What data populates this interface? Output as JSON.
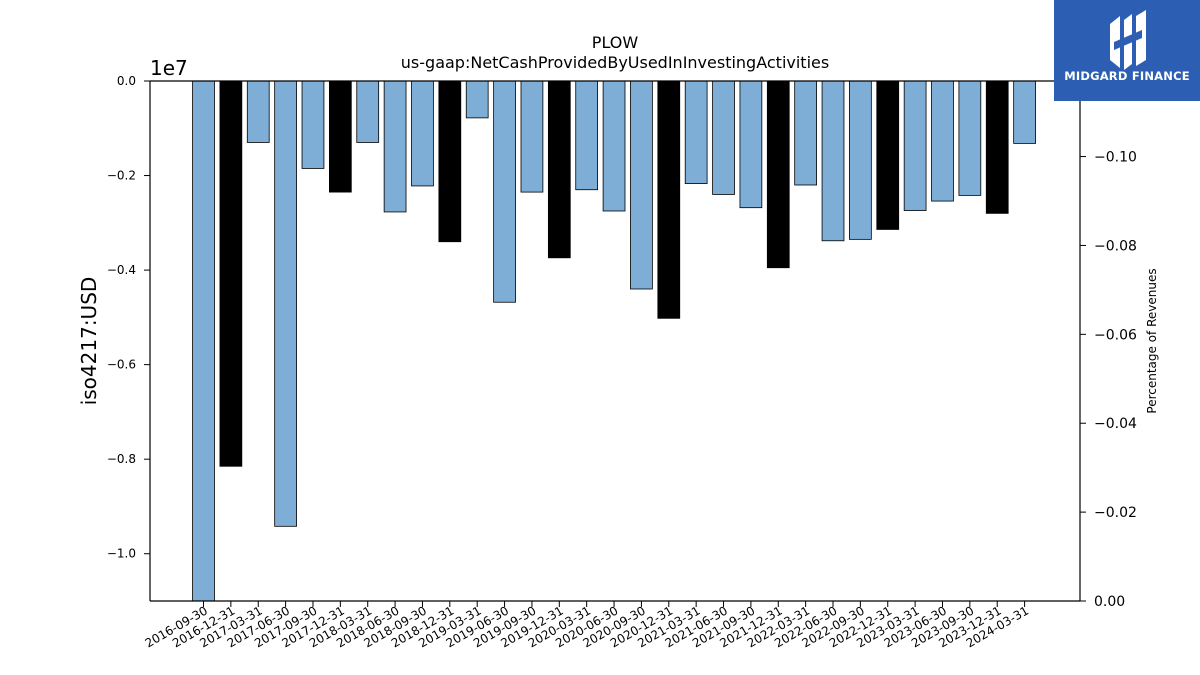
{
  "chart_data": {
    "type": "bar",
    "title": "PLOW",
    "subtitle": "us-gaap:NetCashProvidedByUsedInInvestingActivities",
    "ylabel": "iso4217:USD",
    "y_offset_label": "1e7",
    "y2label": "Percentage of Revenues",
    "ylim": [
      -11000000.0,
      0
    ],
    "y2lim": [
      0,
      -0.117
    ],
    "yticks": [
      "0.0",
      "−0.2",
      "−0.4",
      "−0.6",
      "−0.8",
      "−1.0"
    ],
    "yticks_values": [
      0,
      -2000000,
      -4000000,
      -6000000,
      -8000000,
      -10000000
    ],
    "y2ticks": [
      "0.00",
      "−0.02",
      "−0.04",
      "−0.06",
      "−0.08",
      "−0.10"
    ],
    "y2ticks_values": [
      0,
      -0.02,
      -0.04,
      -0.06,
      -0.08,
      -0.1
    ],
    "categories": [
      "2016-09-30",
      "2016-12-31",
      "2017-03-31",
      "2017-06-30",
      "2017-09-30",
      "2017-12-31",
      "2018-03-31",
      "2018-06-30",
      "2018-09-30",
      "2018-12-31",
      "2019-03-31",
      "2019-06-30",
      "2019-09-30",
      "2019-12-31",
      "2020-03-31",
      "2020-06-30",
      "2020-09-30",
      "2020-12-31",
      "2021-03-31",
      "2021-06-30",
      "2021-09-30",
      "2021-12-31",
      "2022-03-31",
      "2022-06-30",
      "2022-09-30",
      "2022-12-31",
      "2023-03-31",
      "2023-06-30",
      "2023-09-30",
      "2023-12-31",
      "2024-03-31"
    ],
    "values": [
      -11000000,
      -8150000,
      -1300000,
      -9420000,
      -1850000,
      -2350000,
      -1300000,
      -2770000,
      -2220000,
      -3400000,
      -780000,
      -4680000,
      -2350000,
      -3740000,
      -2300000,
      -2750000,
      -4400000,
      -5020000,
      -2170000,
      -2400000,
      -2680000,
      -3950000,
      -2200000,
      -3380000,
      -3350000,
      -3140000,
      -2740000,
      -2540000,
      -2420000,
      -2800000,
      -1320000
    ],
    "bar_colors": [
      "#7eaed5",
      "#000000",
      "#7eaed5",
      "#7eaed5",
      "#7eaed5",
      "#000000",
      "#7eaed5",
      "#7eaed5",
      "#7eaed5",
      "#000000",
      "#7eaed5",
      "#7eaed5",
      "#7eaed5",
      "#000000",
      "#7eaed5",
      "#7eaed5",
      "#7eaed5",
      "#000000",
      "#7eaed5",
      "#7eaed5",
      "#7eaed5",
      "#000000",
      "#7eaed5",
      "#7eaed5",
      "#7eaed5",
      "#000000",
      "#7eaed5",
      "#7eaed5",
      "#7eaed5",
      "#000000",
      "#7eaed5"
    ],
    "grid": false
  },
  "logo": {
    "text": "MIDGARD FINANCE",
    "background": "#2c5fb3",
    "icon": "midgard-logo-icon"
  }
}
